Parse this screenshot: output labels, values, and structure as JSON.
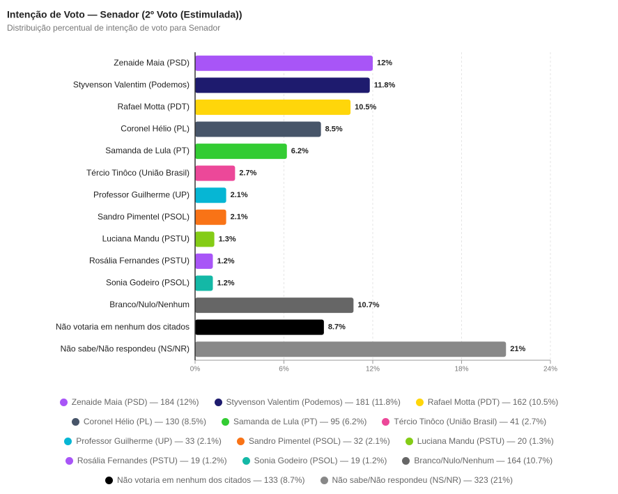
{
  "chart_data": {
    "type": "barh",
    "title": "Intenção de Voto — Senador (2º Voto (Estimulada))",
    "subtitle": "Distribuição percentual de intenção de voto para Senador",
    "categories": [
      "Zenaide Maia (PSD)",
      "Styvenson Valentim (Podemos)",
      "Rafael Motta (PDT)",
      "Coronel Hélio (PL)",
      "Samanda de Lula (PT)",
      "Tércio Tinôco (União Brasil)",
      "Professor Guilherme (UP)",
      "Sandro Pimentel (PSOL)",
      "Luciana Mandu (PSTU)",
      "Rosália Fernandes (PSTU)",
      "Sonia Godeiro (PSOL)",
      "Branco/Nulo/Nenhum",
      "Não votaria em nenhum dos citados",
      "Não sabe/Não respondeu (NS/NR)"
    ],
    "values": [
      12,
      11.8,
      10.5,
      8.5,
      6.2,
      2.7,
      2.1,
      2.1,
      1.3,
      1.2,
      1.2,
      10.7,
      8.7,
      21
    ],
    "value_labels": [
      "12%",
      "11.8%",
      "10.5%",
      "8.5%",
      "6.2%",
      "2.7%",
      "2.1%",
      "2.1%",
      "1.3%",
      "1.2%",
      "1.2%",
      "10.7%",
      "8.7%",
      "21%"
    ],
    "colors": [
      "#a855f7",
      "#1e1b6e",
      "#ffd60a",
      "#475569",
      "#33cc33",
      "#ec4899",
      "#06b6d4",
      "#f97316",
      "#84cc16",
      "#a855f7",
      "#14b8a6",
      "#666666",
      "#000000",
      "#888888"
    ],
    "legend_labels": [
      "Zenaide Maia (PSD) — 184 (12%)",
      "Styvenson Valentim (Podemos) — 181 (11.8%)",
      "Rafael Motta (PDT) — 162 (10.5%)",
      "Coronel Hélio (PL) — 130 (8.5%)",
      "Samanda de Lula (PT) — 95 (6.2%)",
      "Tércio Tinôco (União Brasil) — 41 (2.7%)",
      "Professor Guilherme (UP) — 33 (2.1%)",
      "Sandro Pimentel (PSOL) — 32 (2.1%)",
      "Luciana Mandu (PSTU) — 20 (1.3%)",
      "Rosália Fernandes (PSTU) — 19 (1.2%)",
      "Sonia Godeiro (PSOL) — 19 (1.2%)",
      "Branco/Nulo/Nenhum — 164 (10.7%)",
      "Não votaria em nenhum dos citados — 133 (8.7%)",
      "Não sabe/Não respondeu (NS/NR) — 323 (21%)"
    ],
    "xlim": [
      0,
      24
    ],
    "xticks": [
      {
        "value": 0,
        "label": "0%"
      },
      {
        "value": 6,
        "label": "6%"
      },
      {
        "value": 12,
        "label": "12%"
      },
      {
        "value": 18,
        "label": "18%"
      },
      {
        "value": 24,
        "label": "24%"
      }
    ],
    "grid": true
  }
}
